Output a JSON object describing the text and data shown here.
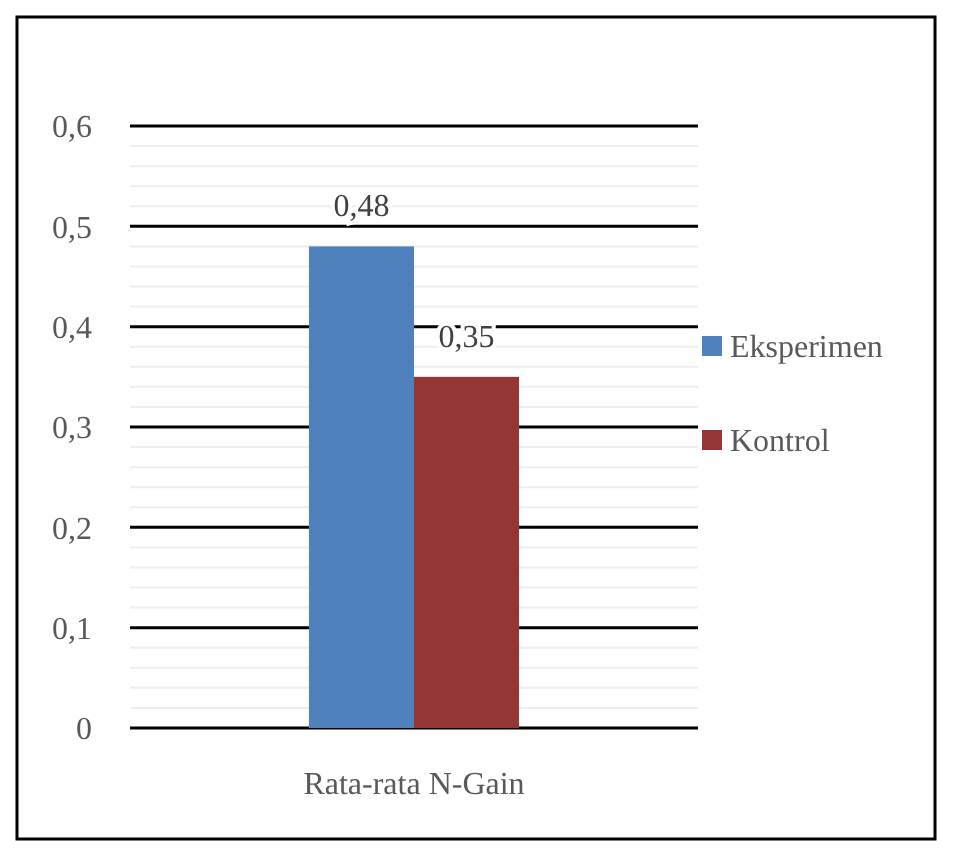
{
  "chart_data": {
    "type": "bar",
    "categories": [
      "Rata-rata N-Gain"
    ],
    "series": [
      {
        "name": "Eksperimen",
        "color": "#4f81bd",
        "values": [
          0.48
        ],
        "value_labels": [
          "0,48"
        ]
      },
      {
        "name": "Kontrol",
        "color": "#943634",
        "values": [
          0.35
        ],
        "value_labels": [
          "0,35"
        ]
      }
    ],
    "ylim": [
      0,
      0.6
    ],
    "yticks": [
      {
        "value": 0,
        "label": "0"
      },
      {
        "value": 0.1,
        "label": "0,1"
      },
      {
        "value": 0.2,
        "label": "0,2"
      },
      {
        "value": 0.3,
        "label": "0,3"
      },
      {
        "value": 0.4,
        "label": "0,4"
      },
      {
        "value": 0.5,
        "label": "0,5"
      },
      {
        "value": 0.6,
        "label": "0,6"
      }
    ],
    "grid": "y",
    "legend": "right"
  }
}
